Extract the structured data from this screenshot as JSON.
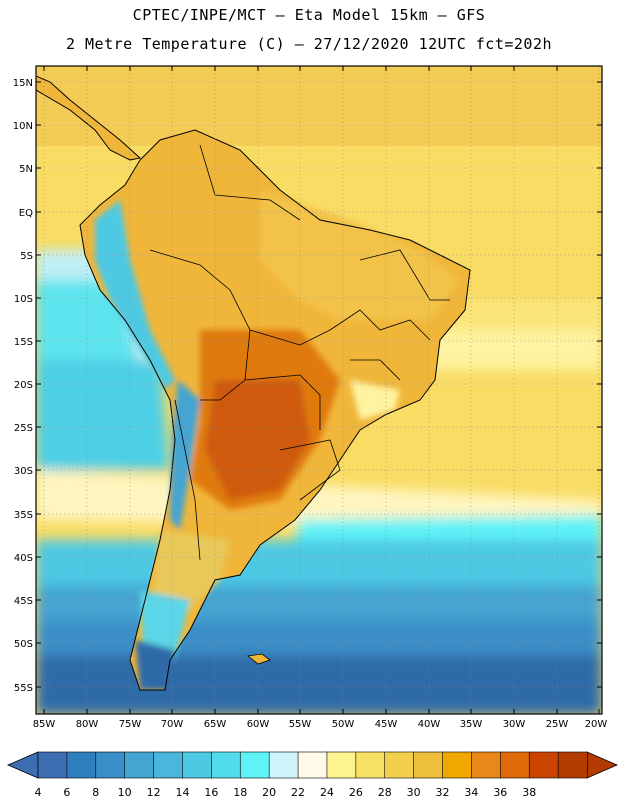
{
  "title_line1": "CPTEC/INPE/MCT –  Eta Model 15km – GFS",
  "title_line2": "2 Metre Temperature (C) – 27/12/2020 12UTC fct=202h",
  "lat_labels": [
    "15N",
    "10N",
    "5N",
    "EQ",
    "5S",
    "10S",
    "15S",
    "20S",
    "25S",
    "30S",
    "35S",
    "40S",
    "45S",
    "50S",
    "55S"
  ],
  "lon_labels": [
    "85W",
    "80W",
    "75W",
    "70W",
    "65W",
    "60W",
    "55W",
    "50W",
    "45W",
    "40W",
    "35W",
    "30W",
    "25W",
    "20W"
  ],
  "colorbar": {
    "labels": [
      "4",
      "6",
      "8",
      "10",
      "12",
      "14",
      "16",
      "18",
      "20",
      "22",
      "24",
      "26",
      "28",
      "30",
      "32",
      "34",
      "36",
      "38"
    ],
    "colors": [
      "#3d6eb3",
      "#2f7fbf",
      "#3a8ec8",
      "#44a4d2",
      "#4bb5dc",
      "#4dc9e4",
      "#52dbea",
      "#5ff2f7",
      "#cff5fb",
      "#fffbe8",
      "#fef48f",
      "#f8e266",
      "#f2d04d",
      "#eebf3b",
      "#f0a800",
      "#e98818",
      "#e06a08",
      "#c94400",
      "#b33a00"
    ],
    "left_arrow_color": "#3d6eb3",
    "right_arrow_color": "#b33a00"
  }
}
